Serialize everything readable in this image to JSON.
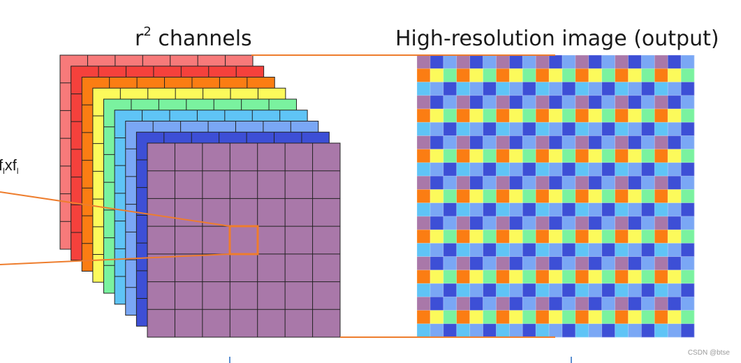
{
  "title_left": {
    "prefix": "r",
    "superscript": "2",
    "suffix": " channels"
  },
  "title_right": "High-resolution image (output)",
  "kernel_label": {
    "f1": "f",
    "s1": "l",
    "x": "x",
    "f2": "f",
    "s2": "l"
  },
  "watermark": "CSDN @btse",
  "channels": {
    "count": 9,
    "colors": [
      "#f77a7a",
      "#f5413c",
      "#fb7d13",
      "#fcfa5b",
      "#7af29f",
      "#5fc4f6",
      "#7aa7f5",
      "#3d4fd6",
      "#a978a9"
    ],
    "front_grid": [
      7,
      7
    ]
  },
  "output_grid": {
    "rows": 21,
    "cols": 21,
    "row_patterns": [
      [
        "#f77a7a",
        "#f5413c",
        "#f77a7a"
      ],
      [
        "#fb7d13",
        "#fcfa5b",
        "#7af29f"
      ],
      [
        "#5fc4f6",
        "#7aa7f5",
        "#3d4fd6"
      ]
    ],
    "pattern_note_colors": [
      "#a978a9",
      "#3d4fd6",
      "#7aa7f5"
    ]
  },
  "accent_color": "#ee7d2d"
}
